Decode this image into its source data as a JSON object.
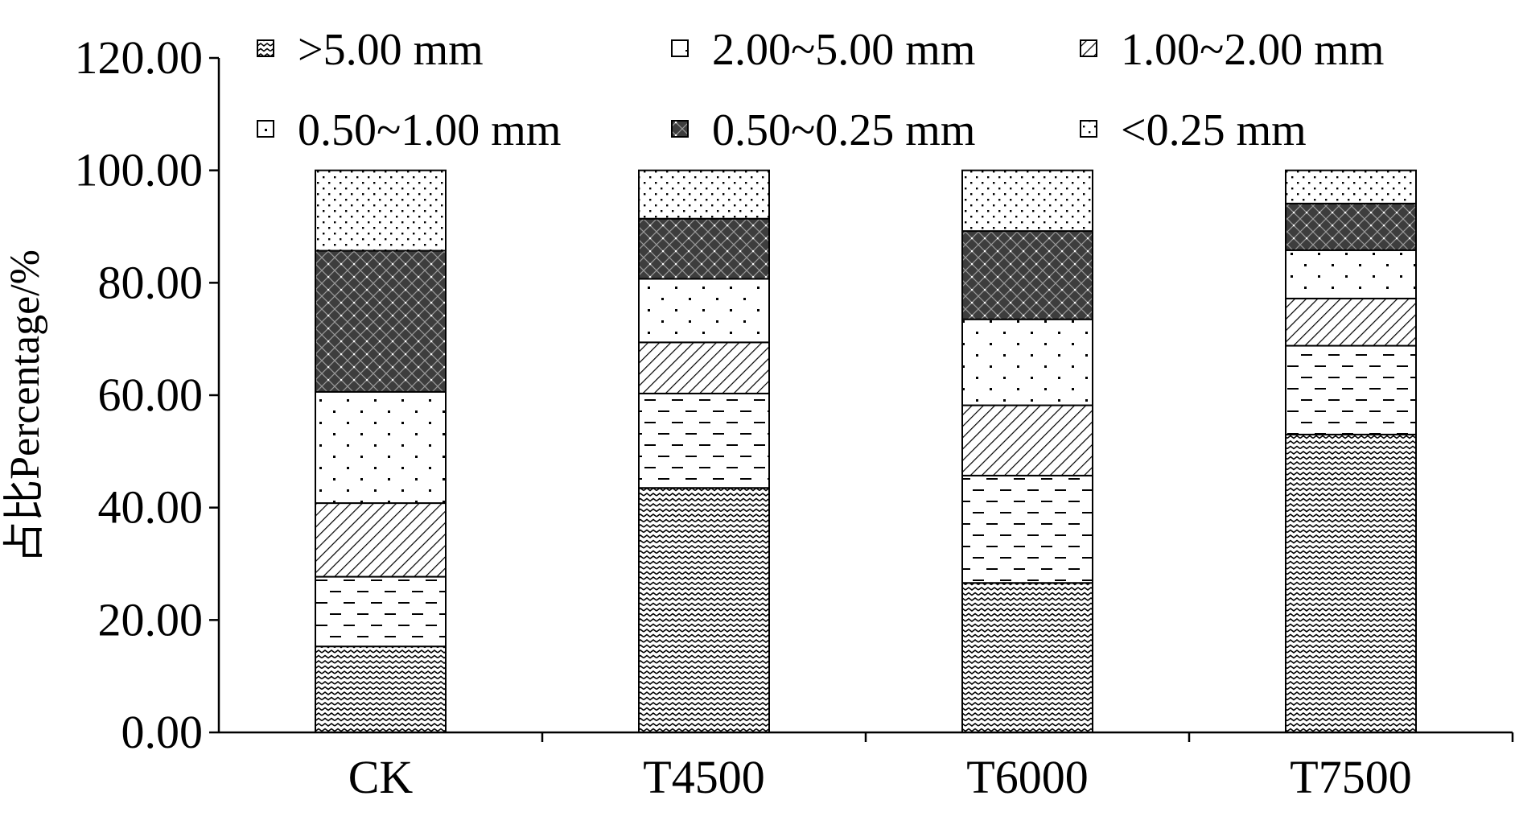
{
  "chart_data": {
    "type": "bar",
    "stacked": true,
    "categories": [
      "CK",
      "T4500",
      "T6000",
      "T7500"
    ],
    "ylabel": "占比Percentage/%",
    "xlabel": "",
    "ylim": [
      0,
      120
    ],
    "yticks": [
      "0.00",
      "20.00",
      "40.00",
      "60.00",
      "80.00",
      "100.00",
      "120.00"
    ],
    "grid": false,
    "legend_position": "top",
    "series": [
      {
        "name": ">5.00 mm",
        "pattern": "wave",
        "values": [
          15.3,
          43.5,
          26.6,
          53.0
        ]
      },
      {
        "name": "2.00~5.00 mm",
        "pattern": "dash",
        "values": [
          12.4,
          16.8,
          19.1,
          15.8
        ]
      },
      {
        "name": "1.00~2.00 mm",
        "pattern": "hatch",
        "values": [
          13.1,
          9.1,
          12.5,
          8.4
        ]
      },
      {
        "name": "0.50~1.00 mm",
        "pattern": "dot",
        "values": [
          19.8,
          11.3,
          15.3,
          8.6
        ]
      },
      {
        "name": "0.50~0.25 mm",
        "pattern": "dense",
        "values": [
          25.1,
          10.7,
          15.7,
          8.3
        ]
      },
      {
        "name": "<0.25 mm",
        "pattern": "sparse",
        "values": [
          14.3,
          8.6,
          10.8,
          5.9
        ]
      }
    ]
  }
}
